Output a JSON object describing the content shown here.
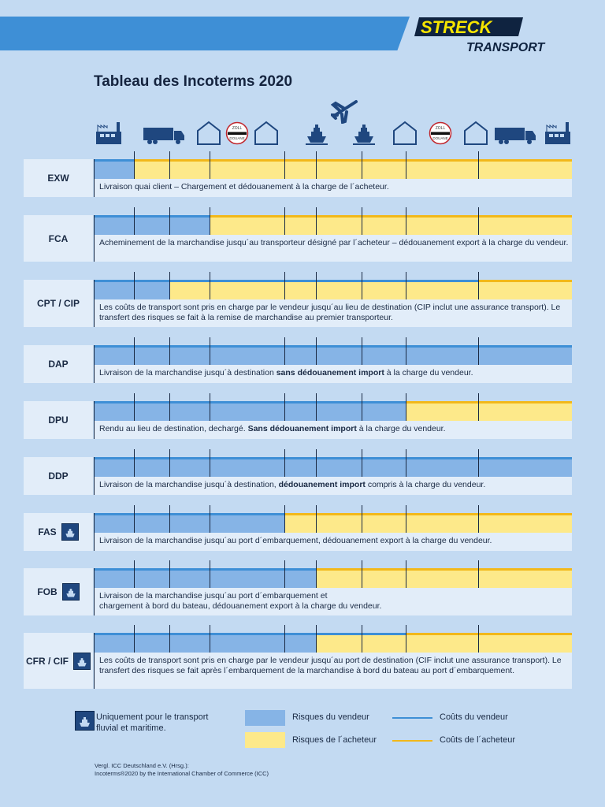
{
  "brand": {
    "line1": "STRECK",
    "line2": "TRANSPORT",
    "yellow": "#f5e400",
    "navy": "#0f2340"
  },
  "title": "Tableau des Incoterms 2020",
  "colors": {
    "seller_risk": "#86b4e6",
    "buyer_risk": "#fde98a",
    "seller_cost": "#3e8fd6",
    "buyer_cost": "#f2b81a"
  },
  "icons": [
    "factory-icon",
    "truck-icon",
    "warehouse-icon",
    "customs-icon",
    "warehouse-icon",
    "ship-icon",
    "airplane-icon",
    "ship-icon",
    "warehouse-icon",
    "customs-icon",
    "warehouse-icon",
    "truck-icon",
    "factory-icon"
  ],
  "customs_label": {
    "top": "ZOLL",
    "bottom": "DOUANE"
  },
  "segments_total": 9,
  "rows": [
    {
      "code": "EXW",
      "maritime": false,
      "seller_risk_segments": 1,
      "seller_cost_segments": 1,
      "desc": [
        {
          "t": "Livraison quai client – Chargement et dédouanement à la charge de l´acheteur."
        }
      ]
    },
    {
      "code": "FCA",
      "maritime": false,
      "seller_risk_segments": 3,
      "seller_cost_segments": 3,
      "desc": [
        {
          "t": "Acheminement de la marchandise jusqu´au transporteur désigné par l´acheteur – dédouanement export à la charge du vendeur."
        }
      ]
    },
    {
      "code": "CPT / CIP",
      "maritime": false,
      "seller_risk_segments": 2,
      "seller_cost_segments": 8,
      "desc": [
        {
          "t": "Les coûts de transport sont pris en charge par le vendeur jusqu´au lieu de destination (CIP inclut une assurance transport). Le transfert des risques se fait à la remise de marchandise au premier transporteur."
        }
      ]
    },
    {
      "code": "DAP",
      "maritime": false,
      "seller_risk_segments": 9,
      "seller_cost_segments": 9,
      "desc": [
        {
          "t": "Livraison de la marchandise jusqu´à destination "
        },
        {
          "t": "sans dédouanement import",
          "b": true
        },
        {
          "t": " à la charge du vendeur."
        }
      ]
    },
    {
      "code": "DPU",
      "maritime": false,
      "seller_risk_segments": 7,
      "seller_cost_segments": 7,
      "desc": [
        {
          "t": "Rendu au lieu de destination, dechargé. "
        },
        {
          "t": "Sans dédouanement import",
          "b": true
        },
        {
          "t": " à la charge du vendeur."
        }
      ]
    },
    {
      "code": "DDP",
      "maritime": false,
      "seller_risk_segments": 9,
      "seller_cost_segments": 9,
      "desc": [
        {
          "t": "Livraison de la marchandise jusqu´à destination, "
        },
        {
          "t": "dédouanement import",
          "b": true
        },
        {
          "t": " compris à la charge du vendeur."
        }
      ]
    },
    {
      "code": "FAS",
      "maritime": true,
      "seller_risk_segments": 4,
      "seller_cost_segments": 4,
      "desc": [
        {
          "t": "Livraison de la marchandise jusqu´au port d´embarquement, dédouanement export à la charge du vendeur."
        }
      ]
    },
    {
      "code": "FOB",
      "maritime": true,
      "seller_risk_segments": 5,
      "seller_cost_segments": 5,
      "desc": [
        {
          "t": "Livraison de la marchandise jusqu´au port d´embarquement et"
        },
        {
          "br": true
        },
        {
          "t": "chargement à bord du bateau, dédouanement export à la charge du vendeur."
        }
      ]
    },
    {
      "code": "CFR / CIF",
      "maritime": true,
      "seller_risk_segments": 5,
      "seller_cost_segments": 7,
      "desc": [
        {
          "t": "Les coûts de transport sont pris en charge par le vendeur jusqu´au port de destination (CIF inclut une assurance transport). Le transfert des risques se fait après l´embarquement de la marchandise à bord du bateau au port d´embarquement."
        }
      ]
    }
  ],
  "legend": {
    "maritime_note": "Uniquement pour le transport fluvial et maritime.",
    "seller_risk": "Risques du vendeur",
    "buyer_risk": "Risques de l´acheteur",
    "seller_cost": "Coûts du vendeur",
    "buyer_cost": "Coûts de l´acheteur"
  },
  "footer": {
    "line1": "Vergl. ICC Deutschland e.V. (Hrsg.):",
    "line2": "Incoterms®2020 by the International Chamber of Commerce (ICC)"
  }
}
